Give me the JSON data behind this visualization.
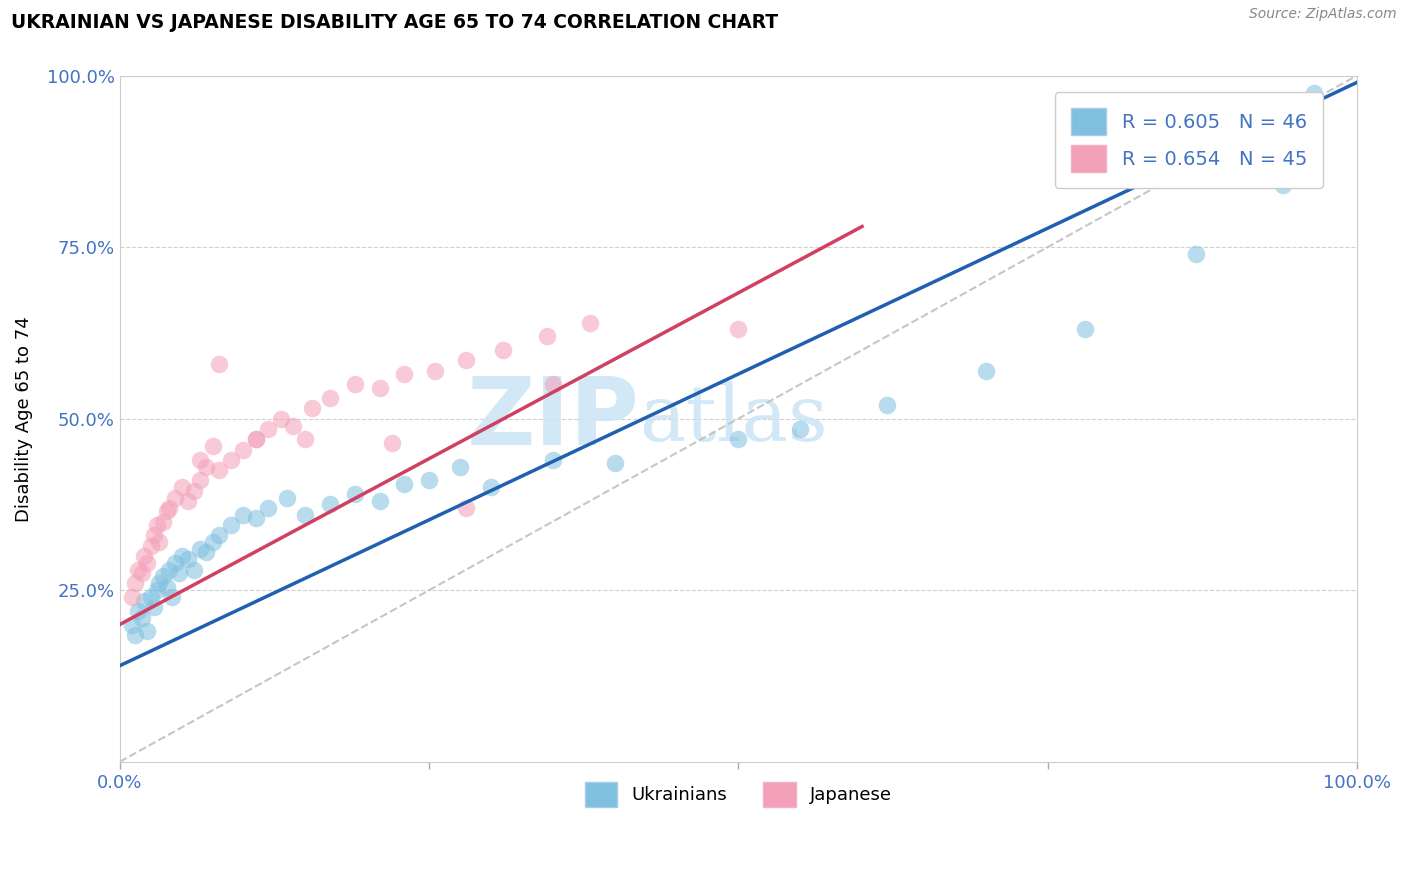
{
  "title": "UKRAINIAN VS JAPANESE DISABILITY AGE 65 TO 74 CORRELATION CHART",
  "source_text": "Source: ZipAtlas.com",
  "ylabel": "Disability Age 65 to 74",
  "blue_color": "#7fbfdf",
  "pink_color": "#f4a0b8",
  "blue_line_color": "#2060b0",
  "pink_line_color": "#d04060",
  "watermark_color": "#cce4f5",
  "xlim": [
    0,
    100
  ],
  "ylim": [
    0,
    100
  ],
  "blue_R": 0.605,
  "blue_N": 46,
  "pink_R": 0.654,
  "pink_N": 45,
  "blue_x": [
    1.0,
    1.2,
    1.5,
    1.8,
    2.0,
    2.2,
    2.5,
    2.8,
    3.0,
    3.2,
    3.5,
    3.8,
    4.0,
    4.2,
    4.5,
    4.8,
    5.0,
    5.5,
    6.0,
    6.5,
    7.0,
    7.5,
    8.0,
    9.0,
    10.0,
    11.0,
    12.0,
    13.5,
    15.0,
    17.0,
    19.0,
    21.0,
    23.0,
    25.0,
    27.5,
    30.0,
    35.0,
    40.0,
    50.0,
    55.0,
    62.0,
    70.0,
    78.0,
    87.0,
    94.0,
    96.5
  ],
  "blue_y": [
    20.0,
    18.5,
    22.0,
    21.0,
    23.5,
    19.0,
    24.0,
    22.5,
    25.0,
    26.0,
    27.0,
    25.5,
    28.0,
    24.0,
    29.0,
    27.5,
    30.0,
    29.5,
    28.0,
    31.0,
    30.5,
    32.0,
    33.0,
    34.5,
    36.0,
    35.5,
    37.0,
    38.5,
    36.0,
    37.5,
    39.0,
    38.0,
    40.5,
    41.0,
    43.0,
    40.0,
    44.0,
    43.5,
    47.0,
    48.5,
    52.0,
    57.0,
    63.0,
    74.0,
    84.0,
    97.5
  ],
  "pink_x": [
    1.0,
    1.2,
    1.5,
    1.8,
    2.0,
    2.2,
    2.5,
    2.8,
    3.0,
    3.2,
    3.5,
    3.8,
    4.0,
    4.5,
    5.0,
    5.5,
    6.0,
    6.5,
    7.0,
    8.0,
    9.0,
    10.0,
    11.0,
    12.0,
    13.0,
    14.0,
    15.5,
    17.0,
    19.0,
    21.0,
    23.0,
    25.5,
    28.0,
    31.0,
    34.5,
    38.0,
    6.5,
    7.5,
    11.0,
    22.0,
    35.0,
    50.0,
    8.0,
    15.0,
    28.0
  ],
  "pink_y": [
    24.0,
    26.0,
    28.0,
    27.5,
    30.0,
    29.0,
    31.5,
    33.0,
    34.5,
    32.0,
    35.0,
    36.5,
    37.0,
    38.5,
    40.0,
    38.0,
    39.5,
    41.0,
    43.0,
    42.5,
    44.0,
    45.5,
    47.0,
    48.5,
    50.0,
    49.0,
    51.5,
    53.0,
    55.0,
    54.5,
    56.5,
    57.0,
    58.5,
    60.0,
    62.0,
    64.0,
    44.0,
    46.0,
    47.0,
    46.5,
    55.0,
    63.0,
    58.0,
    47.0,
    37.0
  ],
  "figsize": [
    14.06,
    8.92
  ],
  "dpi": 100
}
